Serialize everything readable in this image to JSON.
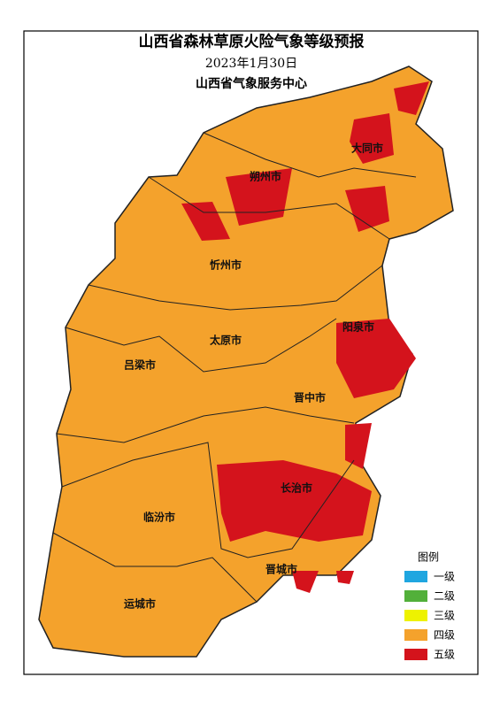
{
  "header": {
    "title": "山西省森林草原火险气象等级预报",
    "date": "2023年1月30日",
    "issuer": "山西省气象服务中心"
  },
  "legend": {
    "title": "图例",
    "items": [
      {
        "label": "一级",
        "color": "#1fa6e0"
      },
      {
        "label": "二级",
        "color": "#52b03a"
      },
      {
        "label": "三级",
        "color": "#eef200"
      },
      {
        "label": "四级",
        "color": "#f4a22c"
      },
      {
        "label": "五级",
        "color": "#d4131c"
      }
    ]
  },
  "cities": [
    "大同市",
    "朔州市",
    "忻州市",
    "阳泉市",
    "太原市",
    "吕梁市",
    "晋中市",
    "长治市",
    "临汾市",
    "晋城市",
    "运城市"
  ]
}
